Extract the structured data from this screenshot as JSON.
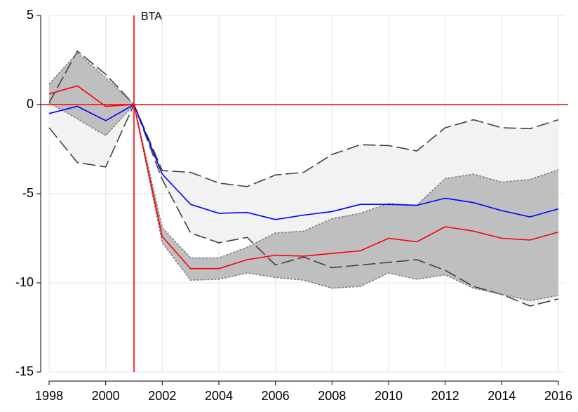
{
  "chart_data": {
    "type": "line",
    "x": [
      1998,
      1999,
      2000,
      2001,
      2002,
      2003,
      2004,
      2005,
      2006,
      2007,
      2008,
      2009,
      2010,
      2011,
      2012,
      2013,
      2014,
      2015,
      2016
    ],
    "xlim": [
      1998,
      2016
    ],
    "xticks": [
      1998,
      2000,
      2002,
      2004,
      2006,
      2008,
      2010,
      2012,
      2014,
      2016
    ],
    "ylim": [
      -15,
      5
    ],
    "yticks": [
      5,
      0,
      -5,
      -10,
      -15
    ],
    "grid": true,
    "bands": [
      {
        "fill": "#f2f2f2",
        "line_color": "#404040",
        "line_style": "dashed",
        "upper": [
          0.1,
          3.0,
          1.7,
          0,
          -3.7,
          -3.8,
          -4.4,
          -4.6,
          -3.95,
          -3.8,
          -2.8,
          -2.25,
          -2.3,
          -2.6,
          -1.3,
          -0.85,
          -1.3,
          -1.35,
          -0.85
        ],
        "lower": [
          -1.3,
          -3.25,
          -3.5,
          0,
          -4.2,
          -7.2,
          -7.75,
          -7.45,
          -9.0,
          -8.55,
          -9.15,
          -9.0,
          -8.85,
          -8.7,
          -9.3,
          -10.2,
          -10.65,
          -11.3,
          -10.9
        ]
      },
      {
        "fill": "#bfbfbf",
        "line_color": "#808080",
        "line_style": "dotted",
        "upper": [
          1.15,
          2.9,
          1.5,
          0,
          -6.9,
          -8.6,
          -8.6,
          -8.0,
          -7.2,
          -7.1,
          -6.4,
          -6.1,
          -5.55,
          -5.65,
          -4.15,
          -3.9,
          -4.35,
          -4.2,
          -3.65
        ],
        "lower": [
          0.1,
          -0.8,
          -1.75,
          0,
          -7.75,
          -9.85,
          -9.8,
          -9.45,
          -9.7,
          -9.85,
          -10.3,
          -10.2,
          -9.45,
          -9.8,
          -9.55,
          -10.3,
          -10.65,
          -11.0,
          -10.7
        ]
      }
    ],
    "series": [
      {
        "color": "#0000ff",
        "values": [
          -0.5,
          -0.1,
          -0.9,
          0,
          -3.9,
          -5.6,
          -6.1,
          -6.05,
          -6.45,
          -6.2,
          -6.0,
          -5.6,
          -5.6,
          -5.65,
          -5.25,
          -5.5,
          -5.95,
          -6.3,
          -5.85
        ]
      },
      {
        "color": "#ff0000",
        "values": [
          0.6,
          1.05,
          -0.1,
          0,
          -7.4,
          -9.2,
          -9.2,
          -8.7,
          -8.45,
          -8.5,
          -8.35,
          -8.2,
          -7.5,
          -7.7,
          -6.85,
          -7.1,
          -7.5,
          -7.6,
          -7.15
        ]
      }
    ],
    "vline": {
      "x": 2001,
      "label": "BTA",
      "color": "#ff0000",
      "label_color": "#a0522d"
    },
    "hline": {
      "y": 0,
      "color": "#ff0000"
    }
  }
}
